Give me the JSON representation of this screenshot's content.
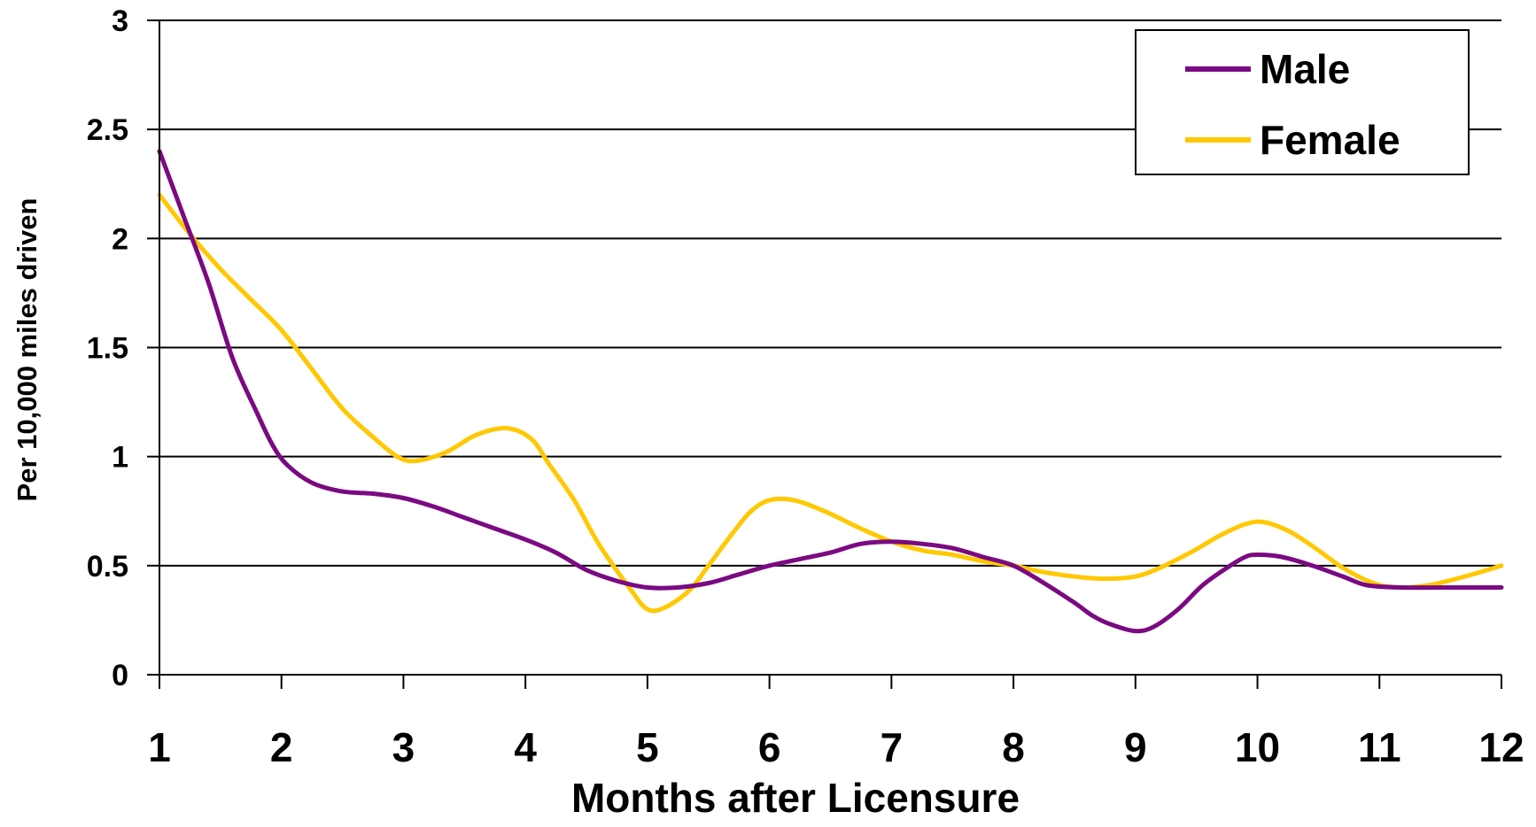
{
  "chart_data": {
    "type": "line",
    "title": "",
    "xlabel": "Months after Licensure",
    "ylabel": "Per 10,000 miles driven",
    "xlim": [
      1,
      12
    ],
    "ylim": [
      0,
      3
    ],
    "x_ticks": [
      "1",
      "2",
      "3",
      "4",
      "5",
      "6",
      "7",
      "8",
      "9",
      "10",
      "11",
      "12"
    ],
    "y_ticks": [
      "0",
      "0.5",
      "1",
      "1.5",
      "2",
      "2.5",
      "3"
    ],
    "grid": "horizontal",
    "legend_position": "top-right",
    "series": [
      {
        "name": "Male",
        "color": "#7B0A82",
        "points": [
          [
            1.0,
            2.4
          ],
          [
            1.2,
            2.1
          ],
          [
            1.4,
            1.8
          ],
          [
            1.6,
            1.45
          ],
          [
            1.8,
            1.2
          ],
          [
            1.93,
            1.05
          ],
          [
            2.05,
            0.96
          ],
          [
            2.25,
            0.88
          ],
          [
            2.5,
            0.84
          ],
          [
            2.75,
            0.83
          ],
          [
            3.0,
            0.81
          ],
          [
            3.25,
            0.77
          ],
          [
            3.5,
            0.72
          ],
          [
            3.75,
            0.67
          ],
          [
            4.0,
            0.62
          ],
          [
            4.25,
            0.56
          ],
          [
            4.5,
            0.48
          ],
          [
            4.75,
            0.43
          ],
          [
            5.0,
            0.4
          ],
          [
            5.25,
            0.4
          ],
          [
            5.5,
            0.42
          ],
          [
            5.75,
            0.46
          ],
          [
            6.0,
            0.5
          ],
          [
            6.25,
            0.53
          ],
          [
            6.5,
            0.56
          ],
          [
            6.75,
            0.6
          ],
          [
            7.0,
            0.61
          ],
          [
            7.25,
            0.6
          ],
          [
            7.5,
            0.58
          ],
          [
            7.75,
            0.54
          ],
          [
            8.0,
            0.5
          ],
          [
            8.25,
            0.42
          ],
          [
            8.5,
            0.33
          ],
          [
            8.65,
            0.27
          ],
          [
            8.8,
            0.23
          ],
          [
            9.0,
            0.2
          ],
          [
            9.15,
            0.22
          ],
          [
            9.35,
            0.3
          ],
          [
            9.55,
            0.41
          ],
          [
            9.75,
            0.49
          ],
          [
            9.9,
            0.54
          ],
          [
            10.0,
            0.55
          ],
          [
            10.2,
            0.54
          ],
          [
            10.45,
            0.5
          ],
          [
            10.7,
            0.45
          ],
          [
            10.9,
            0.41
          ],
          [
            11.2,
            0.4
          ],
          [
            11.5,
            0.4
          ],
          [
            11.8,
            0.4
          ],
          [
            12.0,
            0.4
          ]
        ]
      },
      {
        "name": "Female",
        "color": "#FFC800",
        "points": [
          [
            1.0,
            2.2
          ],
          [
            1.25,
            2.02
          ],
          [
            1.5,
            1.86
          ],
          [
            1.75,
            1.72
          ],
          [
            2.0,
            1.58
          ],
          [
            2.25,
            1.4
          ],
          [
            2.5,
            1.22
          ],
          [
            2.75,
            1.09
          ],
          [
            2.95,
            1.0
          ],
          [
            3.1,
            0.98
          ],
          [
            3.35,
            1.02
          ],
          [
            3.6,
            1.1
          ],
          [
            3.85,
            1.13
          ],
          [
            4.05,
            1.08
          ],
          [
            4.2,
            0.96
          ],
          [
            4.4,
            0.8
          ],
          [
            4.6,
            0.6
          ],
          [
            4.85,
            0.4
          ],
          [
            5.0,
            0.3
          ],
          [
            5.15,
            0.31
          ],
          [
            5.35,
            0.39
          ],
          [
            5.5,
            0.5
          ],
          [
            5.7,
            0.65
          ],
          [
            5.85,
            0.75
          ],
          [
            6.0,
            0.8
          ],
          [
            6.2,
            0.8
          ],
          [
            6.45,
            0.75
          ],
          [
            6.75,
            0.67
          ],
          [
            7.0,
            0.61
          ],
          [
            7.25,
            0.57
          ],
          [
            7.5,
            0.55
          ],
          [
            7.75,
            0.52
          ],
          [
            8.0,
            0.5
          ],
          [
            8.25,
            0.47
          ],
          [
            8.5,
            0.45
          ],
          [
            8.75,
            0.44
          ],
          [
            9.0,
            0.45
          ],
          [
            9.2,
            0.49
          ],
          [
            9.45,
            0.56
          ],
          [
            9.7,
            0.64
          ],
          [
            9.9,
            0.69
          ],
          [
            10.05,
            0.7
          ],
          [
            10.25,
            0.66
          ],
          [
            10.45,
            0.59
          ],
          [
            10.7,
            0.49
          ],
          [
            10.95,
            0.42
          ],
          [
            11.15,
            0.4
          ],
          [
            11.4,
            0.41
          ],
          [
            11.7,
            0.45
          ],
          [
            12.0,
            0.5
          ]
        ]
      }
    ]
  }
}
